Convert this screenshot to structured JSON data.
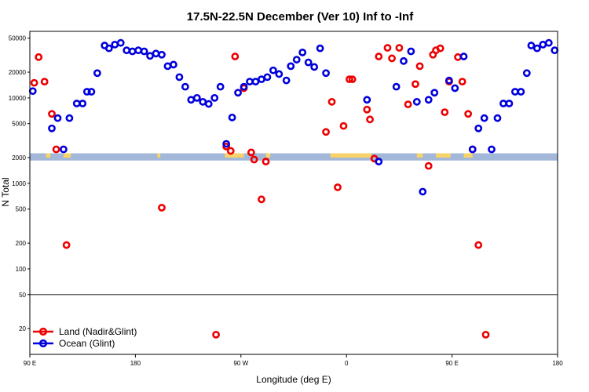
{
  "chart_data": {
    "type": "scatter",
    "title": "17.5N-22.5N December (Ver 10)   Inf to -Inf",
    "xlabel": "Longitude (deg E)",
    "ylabel": "N Total",
    "xlim": [
      0,
      360
    ],
    "ylim": [
      10,
      60000
    ],
    "y_scale": "log",
    "x_ticks": [
      {
        "value": 0,
        "label": "90 E"
      },
      {
        "value": 72,
        "label": "180"
      },
      {
        "value": 144,
        "label": "90 W"
      },
      {
        "value": 216,
        "label": "0"
      },
      {
        "value": 288,
        "label": "90 E"
      },
      {
        "value": 360,
        "label": "180"
      }
    ],
    "y_ticks": [
      {
        "value": 20,
        "label": "20"
      },
      {
        "value": 50,
        "label": "50"
      },
      {
        "value": 100,
        "label": "100"
      },
      {
        "value": 200,
        "label": "200"
      },
      {
        "value": 500,
        "label": "500"
      },
      {
        "value": 1000,
        "label": "1000"
      },
      {
        "value": 2000,
        "label": "2000"
      },
      {
        "value": 5000,
        "label": "5000"
      },
      {
        "value": 10000,
        "label": "10000"
      },
      {
        "value": 20000,
        "label": "20000"
      },
      {
        "value": 50000,
        "label": "50000"
      }
    ],
    "hline": 50,
    "land_band": {
      "y_range": [
        1850,
        2250
      ],
      "color": "#f7d36a",
      "base_color": "#a3b8d9"
    },
    "legend_position": "bottom-left",
    "colors": {
      "land": "#ee0000",
      "ocean": "#0000dd",
      "hline": "#555555",
      "axis": "#000000"
    },
    "series": [
      {
        "name": "Land (Nadir&Glint)",
        "color": "#ee0000",
        "x": [
          3,
          6,
          10,
          15,
          18,
          25,
          90,
          127,
          134,
          137,
          140,
          146,
          151,
          153,
          158,
          161,
          202,
          206,
          210,
          214,
          218,
          220,
          230,
          232,
          235,
          238,
          244,
          247,
          252,
          258,
          263,
          266,
          272,
          275,
          277,
          280,
          283,
          286,
          292,
          295,
          299,
          302,
          306,
          311
        ],
        "y": [
          15000,
          30000,
          15500,
          6500,
          2500,
          190,
          520,
          17,
          2700,
          2400,
          30500,
          13000,
          2300,
          1900,
          650,
          1800,
          4000,
          9000,
          900,
          4700,
          16500,
          16500,
          7300,
          5600,
          1950,
          30500,
          38500,
          29000,
          38500,
          8400,
          14500,
          23500,
          1600,
          32000,
          36000,
          38000,
          6800,
          15500,
          30000,
          15500,
          6500,
          2500,
          190,
          17
        ]
      },
      {
        "name": "Ocean (Glint)",
        "color": "#0000dd",
        "x": [
          2,
          15,
          19,
          23,
          27,
          32,
          36,
          39,
          42,
          46,
          51,
          54,
          58,
          62,
          66,
          70,
          74,
          78,
          82,
          86,
          90,
          94,
          98,
          102,
          106,
          110,
          114,
          118,
          122,
          126,
          130,
          134,
          138,
          142,
          146,
          150,
          154,
          158,
          162,
          166,
          170,
          175,
          178,
          182,
          186,
          190,
          194,
          198,
          202,
          230,
          238,
          250,
          255,
          260,
          264,
          268,
          272,
          276,
          286,
          290,
          296,
          302,
          306,
          310,
          315,
          319,
          323,
          327,
          331,
          335,
          339,
          342,
          346,
          350,
          354,
          358
        ],
        "y": [
          12000,
          4400,
          5800,
          2500,
          5800,
          8600,
          8600,
          11800,
          11800,
          19500,
          41000,
          38000,
          42000,
          44000,
          36000,
          35000,
          36000,
          35000,
          31000,
          33000,
          32000,
          23500,
          24500,
          17500,
          13500,
          9500,
          10000,
          9000,
          8500,
          10000,
          13500,
          2900,
          5900,
          11500,
          13500,
          15500,
          15500,
          16500,
          17500,
          21000,
          19000,
          16000,
          23500,
          28000,
          34000,
          26000,
          23000,
          38000,
          19500,
          9500,
          1800,
          13500,
          27000,
          35000,
          9000,
          800,
          9500,
          11500,
          16000,
          13000,
          30500,
          2500,
          4400,
          5800,
          2500,
          5800,
          8600,
          8600,
          11800,
          11800,
          19500,
          41000,
          38000,
          42000,
          44000,
          36000
        ]
      }
    ]
  }
}
